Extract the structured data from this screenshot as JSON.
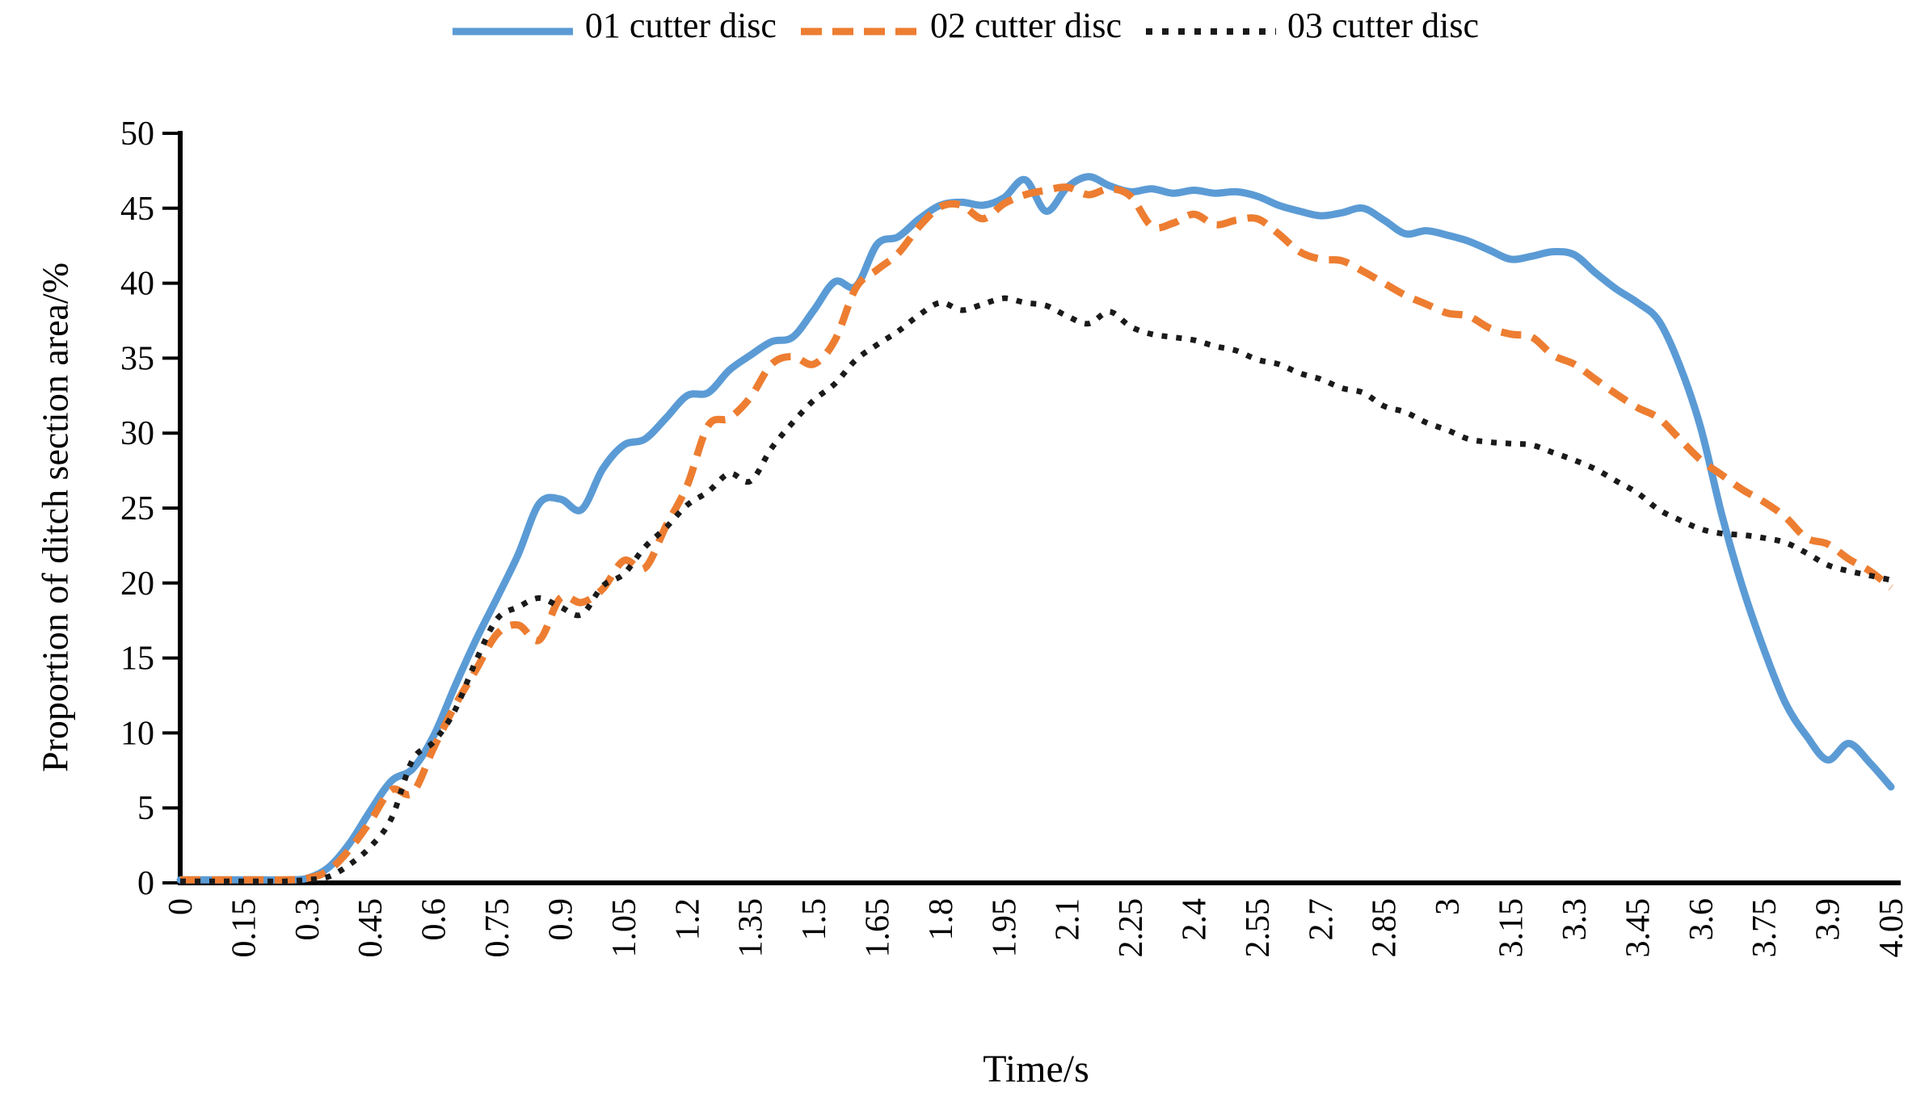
{
  "chart_data": {
    "type": "line",
    "title": "",
    "xlabel": "Time/s",
    "ylabel": "Proportion of ditch section area/%",
    "xlim": [
      0,
      4.05
    ],
    "ylim": [
      0,
      50
    ],
    "grid": false,
    "legend_position": "top-center",
    "axis_color": "#000000",
    "x_start": 0,
    "x_step": 0.05,
    "x_tick_labels": [
      "0",
      "0.15",
      "0.3",
      "0.45",
      "0.6",
      "0.75",
      "0.9",
      "1.05",
      "1.2",
      "1.35",
      "1.5",
      "1.65",
      "1.8",
      "1.95",
      "2.1",
      "2.25",
      "2.4",
      "2.55",
      "2.7",
      "2.85",
      "3",
      "3.15",
      "3.3",
      "3.45",
      "3.6",
      "3.75",
      "3.9",
      "4.05"
    ],
    "y_ticks": [
      0,
      5,
      10,
      15,
      20,
      25,
      30,
      35,
      40,
      45,
      50
    ],
    "series": [
      {
        "name": "01 cutter disc",
        "color": "#5b9bd5",
        "style": "solid",
        "values": [
          0.2,
          0.2,
          0.2,
          0.2,
          0.2,
          0.2,
          0.3,
          1.0,
          2.6,
          4.8,
          6.8,
          7.6,
          9.8,
          13.1,
          16.2,
          19.0,
          21.9,
          25.3,
          25.6,
          24.9,
          27.6,
          29.2,
          29.6,
          31.0,
          32.5,
          32.7,
          34.2,
          35.2,
          36.1,
          36.4,
          38.2,
          40.1,
          39.8,
          42.6,
          43.1,
          44.3,
          45.2,
          45.4,
          45.2,
          45.7,
          46.9,
          44.8,
          46.4,
          47.1,
          46.5,
          46.1,
          46.3,
          46.0,
          46.2,
          46.0,
          46.1,
          45.8,
          45.2,
          44.8,
          44.5,
          44.7,
          45.0,
          44.2,
          43.3,
          43.5,
          43.2,
          42.8,
          42.2,
          41.6,
          41.8,
          42.1,
          41.9,
          40.7,
          39.6,
          38.7,
          37.5,
          34.5,
          30.3,
          24.5,
          19.6,
          15.5,
          12.0,
          9.8,
          8.2,
          9.3,
          8.0,
          6.4
        ]
      },
      {
        "name": "02 cutter disc",
        "color": "#ed7d31",
        "style": "dashed",
        "values": [
          0.2,
          0.2,
          0.2,
          0.2,
          0.2,
          0.2,
          0.3,
          0.8,
          2.2,
          4.1,
          6.2,
          6.0,
          9.0,
          11.8,
          14.2,
          16.6,
          17.2,
          16.2,
          19.0,
          18.7,
          19.6,
          21.5,
          21.0,
          23.8,
          26.5,
          30.5,
          31.0,
          32.4,
          34.6,
          35.1,
          34.6,
          36.2,
          39.7,
          40.9,
          42.0,
          43.8,
          45.1,
          45.2,
          44.3,
          45.3,
          45.9,
          46.2,
          46.4,
          45.9,
          46.3,
          45.8,
          43.8,
          44.0,
          44.6,
          43.9,
          44.2,
          44.3,
          43.3,
          42.1,
          41.6,
          41.5,
          40.8,
          40.0,
          39.2,
          38.6,
          38.0,
          37.8,
          37.0,
          36.6,
          36.4,
          35.2,
          34.6,
          33.6,
          32.6,
          31.7,
          31.0,
          29.6,
          28.2,
          27.2,
          26.2,
          25.4,
          24.4,
          23.0,
          22.6,
          21.6,
          20.8,
          19.7
        ]
      },
      {
        "name": "03 cutter disc",
        "color": "#1a1a1a",
        "style": "dotted",
        "values": [
          0.1,
          0.1,
          0.1,
          0.1,
          0.1,
          0.1,
          0.2,
          0.4,
          1.2,
          2.4,
          4.3,
          8.2,
          9.4,
          11.5,
          14.8,
          17.6,
          18.4,
          19.0,
          18.4,
          17.9,
          19.8,
          20.6,
          22.4,
          23.7,
          25.2,
          26.1,
          27.3,
          26.8,
          29.0,
          30.7,
          32.2,
          33.3,
          34.9,
          35.9,
          36.8,
          37.9,
          38.7,
          38.2,
          38.6,
          39.0,
          38.7,
          38.5,
          37.8,
          37.3,
          38.1,
          37.1,
          36.6,
          36.4,
          36.2,
          35.8,
          35.5,
          34.9,
          34.6,
          34.0,
          33.6,
          33.0,
          32.7,
          31.8,
          31.4,
          30.7,
          30.2,
          29.6,
          29.4,
          29.3,
          29.2,
          28.7,
          28.2,
          27.6,
          26.8,
          26.0,
          24.9,
          24.2,
          23.6,
          23.3,
          23.2,
          23.0,
          22.7,
          22.0,
          21.2,
          20.8,
          20.5,
          20.2
        ]
      }
    ]
  }
}
